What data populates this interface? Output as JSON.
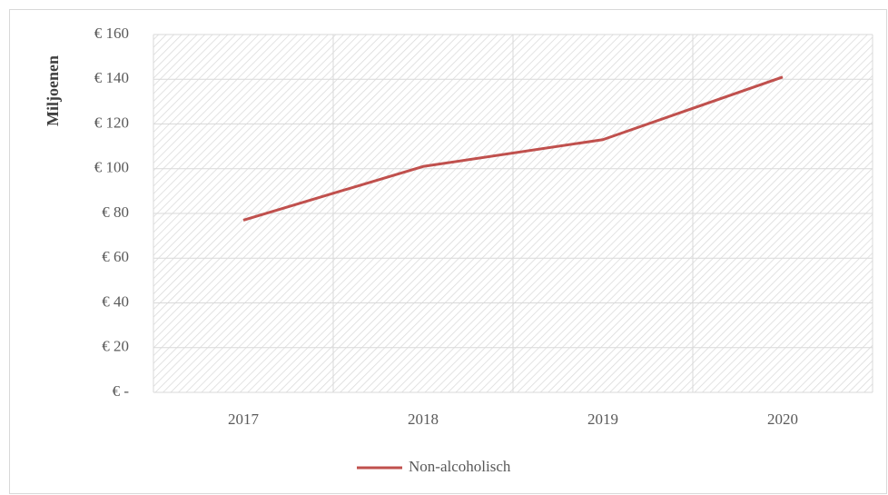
{
  "chart_data": {
    "type": "line",
    "categories": [
      "2017",
      "2018",
      "2019",
      "2020"
    ],
    "series": [
      {
        "name": "Non-alcoholisch",
        "color": "#c0504d",
        "values": [
          77,
          101,
          113,
          141
        ]
      }
    ],
    "ylabel": "Miljoenen",
    "ylim": [
      0,
      160
    ],
    "yticks": [
      {
        "value": 0,
        "label": "€ -"
      },
      {
        "value": 20,
        "label": "€ 20"
      },
      {
        "value": 40,
        "label": "€ 40"
      },
      {
        "value": 60,
        "label": "€ 60"
      },
      {
        "value": 80,
        "label": "€ 80"
      },
      {
        "value": 100,
        "label": "€ 100"
      },
      {
        "value": 120,
        "label": "€ 120"
      },
      {
        "value": 140,
        "label": "€ 140"
      },
      {
        "value": 160,
        "label": "€ 160"
      }
    ],
    "grid": true,
    "legend": "bottom"
  }
}
